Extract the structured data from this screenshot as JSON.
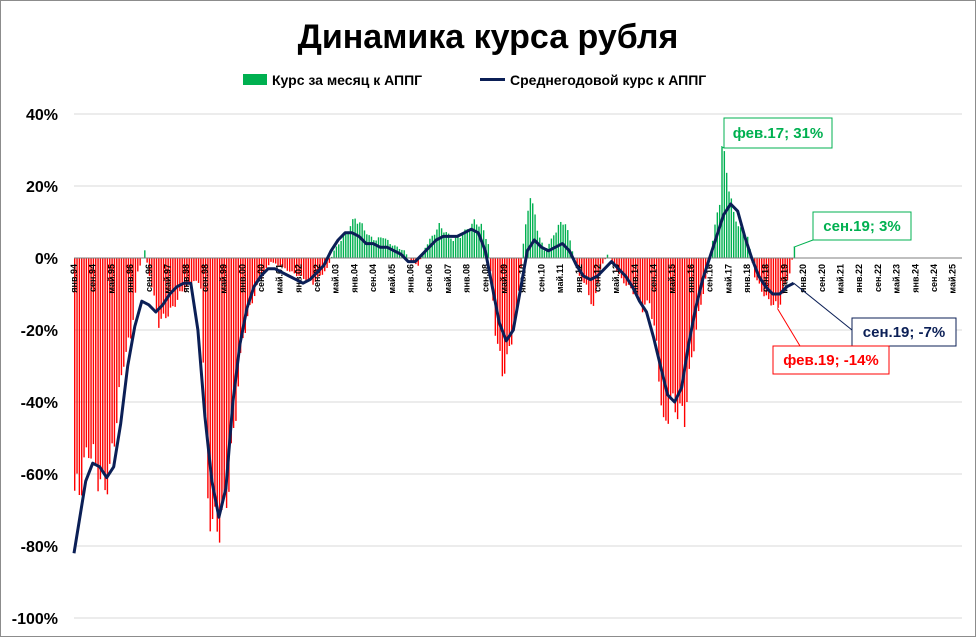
{
  "chart_data": {
    "type": "bar+line",
    "title": "Динамика курса рубля",
    "ylim": [
      -100,
      40
    ],
    "yticks": [
      "40%",
      "20%",
      "0%",
      "-20%",
      "-40%",
      "-60%",
      "-80%",
      "-100%"
    ],
    "ytick_values": [
      40,
      20,
      0,
      -20,
      -40,
      -60,
      -80,
      -100
    ],
    "grid": true,
    "legend_position": "top",
    "x_start": "1994-01",
    "x_end": "2025-09",
    "x_tick_labels": [
      "янв.94",
      "сен.94",
      "май.95",
      "янв.96",
      "сен.96",
      "май.97",
      "янв.98",
      "сен.98",
      "май.99",
      "янв.00",
      "сен.00",
      "май.01",
      "янв.02",
      "сен.02",
      "май.03",
      "янв.04",
      "сен.04",
      "май.05",
      "янв.06",
      "сен.06",
      "май.07",
      "янв.08",
      "сен.08",
      "май.09",
      "янв.10",
      "сен.10",
      "май.11",
      "янв.12",
      "сен.12",
      "май.13",
      "янв.14",
      "сен.14",
      "май.15",
      "янв.16",
      "сен.16",
      "май.17",
      "янв.18",
      "сен.18",
      "май.19",
      "янв.20",
      "сен.20",
      "май.21",
      "янв.22",
      "сен.22",
      "май.23",
      "янв.24",
      "сен.24",
      "май.25"
    ],
    "series": [
      {
        "name": "Курс за месяц к АППГ",
        "kind": "bar",
        "color_positive": "#00b050",
        "color_negative": "#ff0000",
        "points": [
          [
            "1994-01",
            -66
          ],
          [
            "1994-04",
            -62
          ],
          [
            "1994-07",
            -52
          ],
          [
            "1994-10",
            -58
          ],
          [
            "1995-01",
            -64
          ],
          [
            "1995-04",
            -60
          ],
          [
            "1995-07",
            -44
          ],
          [
            "1995-10",
            -28
          ],
          [
            "1996-01",
            -22
          ],
          [
            "1996-04",
            -4
          ],
          [
            "1996-07",
            2
          ],
          [
            "1996-10",
            -8
          ],
          [
            "1997-01",
            -18
          ],
          [
            "1997-04",
            -16
          ],
          [
            "1997-07",
            -14
          ],
          [
            "1997-10",
            -10
          ],
          [
            "1998-01",
            -8
          ],
          [
            "1998-04",
            -6
          ],
          [
            "1998-07",
            -8
          ],
          [
            "1998-10",
            -68
          ],
          [
            "1999-01",
            -75
          ],
          [
            "1999-04",
            -73
          ],
          [
            "1999-07",
            -62
          ],
          [
            "1999-10",
            -42
          ],
          [
            "2000-01",
            -22
          ],
          [
            "2000-04",
            -14
          ],
          [
            "2000-07",
            -8
          ],
          [
            "2000-10",
            -4
          ],
          [
            "2001-01",
            -1
          ],
          [
            "2001-04",
            -2
          ],
          [
            "2001-07",
            -3
          ],
          [
            "2001-10",
            -4
          ],
          [
            "2002-01",
            -5
          ],
          [
            "2002-04",
            -6
          ],
          [
            "2002-07",
            -7
          ],
          [
            "2002-10",
            -5
          ],
          [
            "2003-01",
            -3
          ],
          [
            "2003-04",
            2
          ],
          [
            "2003-07",
            5
          ],
          [
            "2003-10",
            8
          ],
          [
            "2004-01",
            11
          ],
          [
            "2004-04",
            9
          ],
          [
            "2004-07",
            6
          ],
          [
            "2004-10",
            5
          ],
          [
            "2005-01",
            6
          ],
          [
            "2005-04",
            4
          ],
          [
            "2005-07",
            3
          ],
          [
            "2005-10",
            2
          ],
          [
            "2006-01",
            -1
          ],
          [
            "2006-04",
            -2
          ],
          [
            "2006-07",
            3
          ],
          [
            "2006-10",
            6
          ],
          [
            "2007-01",
            9
          ],
          [
            "2007-04",
            7
          ],
          [
            "2007-07",
            5
          ],
          [
            "2007-10",
            6
          ],
          [
            "2008-01",
            8
          ],
          [
            "2008-04",
            10
          ],
          [
            "2008-07",
            9
          ],
          [
            "2008-10",
            4
          ],
          [
            "2009-01",
            -20
          ],
          [
            "2009-04",
            -32
          ],
          [
            "2009-07",
            -26
          ],
          [
            "2009-10",
            -16
          ],
          [
            "2010-01",
            4
          ],
          [
            "2010-04",
            18
          ],
          [
            "2010-07",
            8
          ],
          [
            "2010-10",
            2
          ],
          [
            "2011-01",
            5
          ],
          [
            "2011-04",
            9
          ],
          [
            "2011-07",
            10
          ],
          [
            "2011-10",
            2
          ],
          [
            "2012-01",
            -5
          ],
          [
            "2012-04",
            -8
          ],
          [
            "2012-07",
            -14
          ],
          [
            "2012-10",
            -3
          ],
          [
            "2013-01",
            1
          ],
          [
            "2013-04",
            -2
          ],
          [
            "2013-07",
            -6
          ],
          [
            "2013-10",
            -8
          ],
          [
            "2014-01",
            -10
          ],
          [
            "2014-04",
            -14
          ],
          [
            "2014-07",
            -12
          ],
          [
            "2014-10",
            -24
          ],
          [
            "2015-01",
            -48
          ],
          [
            "2015-04",
            -40
          ],
          [
            "2015-07",
            -42
          ],
          [
            "2015-10",
            -44
          ],
          [
            "2016-01",
            -28
          ],
          [
            "2016-04",
            -16
          ],
          [
            "2016-07",
            -6
          ],
          [
            "2016-10",
            5
          ],
          [
            "2017-01",
            16
          ],
          [
            "2017-02",
            31
          ],
          [
            "2017-04",
            24
          ],
          [
            "2017-07",
            12
          ],
          [
            "2017-10",
            8
          ],
          [
            "2018-01",
            6
          ],
          [
            "2018-04",
            -5
          ],
          [
            "2018-07",
            -9
          ],
          [
            "2018-10",
            -12
          ],
          [
            "2019-01",
            -13
          ],
          [
            "2019-02",
            -14
          ],
          [
            "2019-05",
            -8
          ],
          [
            "2019-07",
            -4
          ],
          [
            "2019-09",
            3
          ]
        ]
      },
      {
        "name": "Среднегодовой курс к АППГ",
        "kind": "line",
        "color": "#0b1f56",
        "points": [
          [
            "1994-01",
            -82
          ],
          [
            "1994-03",
            -74
          ],
          [
            "1994-06",
            -62
          ],
          [
            "1994-09",
            -57
          ],
          [
            "1994-12",
            -58
          ],
          [
            "1995-03",
            -61
          ],
          [
            "1995-06",
            -58
          ],
          [
            "1995-09",
            -46
          ],
          [
            "1995-12",
            -30
          ],
          [
            "1996-03",
            -19
          ],
          [
            "1996-06",
            -12
          ],
          [
            "1996-09",
            -13
          ],
          [
            "1996-12",
            -15
          ],
          [
            "1997-03",
            -13
          ],
          [
            "1997-06",
            -10
          ],
          [
            "1997-09",
            -8
          ],
          [
            "1997-12",
            -7
          ],
          [
            "1998-03",
            -7
          ],
          [
            "1998-06",
            -20
          ],
          [
            "1998-09",
            -44
          ],
          [
            "1998-12",
            -62
          ],
          [
            "1999-03",
            -72
          ],
          [
            "1999-06",
            -64
          ],
          [
            "1999-09",
            -40
          ],
          [
            "1999-12",
            -24
          ],
          [
            "2000-03",
            -14
          ],
          [
            "2000-06",
            -8
          ],
          [
            "2000-09",
            -5
          ],
          [
            "2000-12",
            -3
          ],
          [
            "2001-03",
            -3
          ],
          [
            "2001-06",
            -4
          ],
          [
            "2001-09",
            -5
          ],
          [
            "2001-12",
            -6
          ],
          [
            "2002-03",
            -7
          ],
          [
            "2002-06",
            -6
          ],
          [
            "2002-09",
            -4
          ],
          [
            "2002-12",
            -2
          ],
          [
            "2003-03",
            2
          ],
          [
            "2003-06",
            5
          ],
          [
            "2003-09",
            7
          ],
          [
            "2003-12",
            7
          ],
          [
            "2004-03",
            6
          ],
          [
            "2004-06",
            4
          ],
          [
            "2004-09",
            4
          ],
          [
            "2004-12",
            3
          ],
          [
            "2005-03",
            3
          ],
          [
            "2005-06",
            2
          ],
          [
            "2005-09",
            1
          ],
          [
            "2005-12",
            -1
          ],
          [
            "2006-03",
            -1
          ],
          [
            "2006-06",
            1
          ],
          [
            "2006-09",
            3
          ],
          [
            "2006-12",
            5
          ],
          [
            "2007-03",
            6
          ],
          [
            "2007-06",
            6
          ],
          [
            "2007-09",
            6
          ],
          [
            "2007-12",
            7
          ],
          [
            "2008-03",
            8
          ],
          [
            "2008-06",
            7
          ],
          [
            "2008-09",
            2
          ],
          [
            "2008-12",
            -8
          ],
          [
            "2009-03",
            -18
          ],
          [
            "2009-06",
            -23
          ],
          [
            "2009-09",
            -20
          ],
          [
            "2009-12",
            -9
          ],
          [
            "2010-03",
            2
          ],
          [
            "2010-06",
            5
          ],
          [
            "2010-09",
            3
          ],
          [
            "2010-12",
            2
          ],
          [
            "2011-03",
            3
          ],
          [
            "2011-06",
            4
          ],
          [
            "2011-09",
            2
          ],
          [
            "2011-12",
            -2
          ],
          [
            "2012-03",
            -5
          ],
          [
            "2012-06",
            -6
          ],
          [
            "2012-09",
            -5
          ],
          [
            "2012-12",
            -3
          ],
          [
            "2013-03",
            -1
          ],
          [
            "2013-06",
            -3
          ],
          [
            "2013-09",
            -5
          ],
          [
            "2013-12",
            -8
          ],
          [
            "2014-03",
            -12
          ],
          [
            "2014-06",
            -15
          ],
          [
            "2014-09",
            -22
          ],
          [
            "2014-12",
            -30
          ],
          [
            "2015-03",
            -38
          ],
          [
            "2015-06",
            -40
          ],
          [
            "2015-09",
            -36
          ],
          [
            "2015-12",
            -24
          ],
          [
            "2016-03",
            -14
          ],
          [
            "2016-06",
            -6
          ],
          [
            "2016-09",
            0
          ],
          [
            "2016-12",
            6
          ],
          [
            "2017-03",
            12
          ],
          [
            "2017-06",
            15
          ],
          [
            "2017-09",
            13
          ],
          [
            "2017-12",
            6
          ],
          [
            "2018-03",
            0
          ],
          [
            "2018-06",
            -5
          ],
          [
            "2018-09",
            -8
          ],
          [
            "2018-12",
            -10
          ],
          [
            "2019-03",
            -10
          ],
          [
            "2019-06",
            -8
          ],
          [
            "2019-09",
            -7
          ]
        ]
      }
    ],
    "annotations": [
      {
        "label": "фев.17; 31%",
        "x": "2017-02",
        "y": 31,
        "color": "#00b050"
      },
      {
        "label": "сен.19; 3%",
        "x": "2019-09",
        "y": 3,
        "color": "#00b050"
      },
      {
        "label": "сен.19; -7%",
        "x": "2019-09",
        "y": -7,
        "color": "#0b1f56"
      },
      {
        "label": "фев.19; -14%",
        "x": "2019-02",
        "y": -14,
        "color": "#ff0000"
      }
    ]
  }
}
